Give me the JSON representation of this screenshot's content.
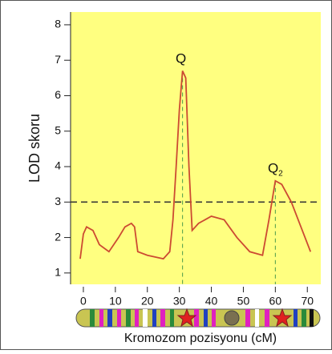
{
  "chart_data": {
    "type": "line",
    "y_label": "LOD skoru",
    "x_label": "Kromozom pozisyonu (cM)",
    "x": [
      -1,
      0,
      1,
      3,
      5,
      8,
      11,
      13,
      15,
      16,
      17,
      20,
      25,
      27,
      28,
      29,
      30,
      31,
      32,
      33,
      34,
      36,
      40,
      44,
      48,
      52,
      56,
      58,
      60,
      62,
      65,
      68,
      71
    ],
    "series": [
      {
        "color": "#cc4a32",
        "values": [
          1.4,
          2.1,
          2.3,
          2.2,
          1.8,
          1.6,
          2.0,
          2.3,
          2.4,
          2.3,
          1.6,
          1.5,
          1.4,
          1.6,
          2.5,
          4.0,
          5.6,
          6.7,
          6.5,
          4.0,
          2.2,
          2.4,
          2.6,
          2.5,
          2.0,
          1.6,
          1.5,
          2.5,
          3.6,
          3.5,
          3.0,
          2.3,
          1.6
        ]
      }
    ],
    "threshold": 3,
    "peaks": [
      {
        "label": "Q",
        "x": 31
      },
      {
        "label": "Q",
        "label_sub": "2",
        "x": 60
      }
    ],
    "xlim": [
      -4,
      74.2
    ],
    "xticks": [
      0,
      10,
      20,
      30,
      40,
      50,
      60,
      70
    ],
    "ylim": [
      0.68,
      8.36
    ],
    "yticks": [
      1,
      2,
      3,
      4,
      5,
      6,
      7,
      8
    ],
    "background": "#ffff80"
  }
}
